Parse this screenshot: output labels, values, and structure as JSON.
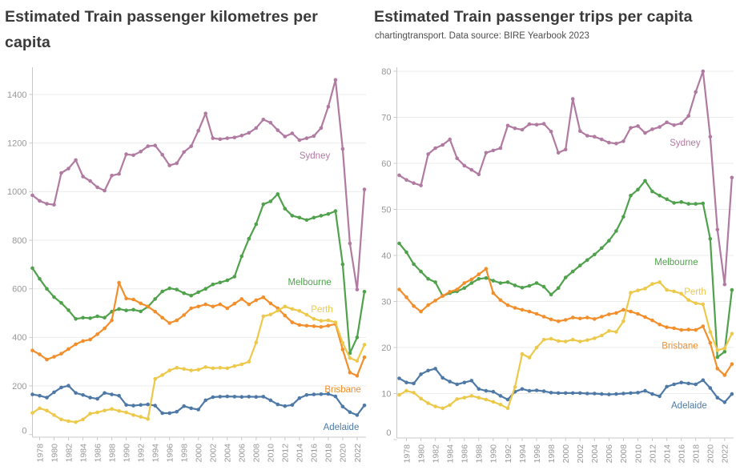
{
  "chart_data": [
    {
      "type": "line",
      "title": "Estimated Train passenger kilometres per capita",
      "subtitle": "",
      "x": [
        1977,
        1978,
        1979,
        1980,
        1981,
        1982,
        1983,
        1984,
        1985,
        1986,
        1987,
        1988,
        1989,
        1990,
        1991,
        1992,
        1993,
        1994,
        1995,
        1996,
        1997,
        1998,
        1999,
        2000,
        2001,
        2002,
        2003,
        2004,
        2005,
        2006,
        2007,
        2008,
        2009,
        2010,
        2011,
        2012,
        2013,
        2014,
        2015,
        2016,
        2017,
        2018,
        2019,
        2020,
        2021,
        2022,
        2023
      ],
      "xlabel": "",
      "ylabel": "",
      "ylim": [
        0,
        1500
      ],
      "grid": "horizontal",
      "legend_position": "inline-labels",
      "y_ticks": [
        0,
        200,
        400,
        600,
        800,
        1000,
        1200,
        1400
      ],
      "x_tick_years": [
        1978,
        1980,
        1982,
        1984,
        1986,
        1988,
        1990,
        1992,
        1994,
        1996,
        1998,
        2000,
        2002,
        2004,
        2006,
        2008,
        2010,
        2012,
        2014,
        2016,
        2018,
        2020,
        2022
      ],
      "series": [
        {
          "name": "Sydney",
          "color": "#b07aa1",
          "values": [
            985,
            962,
            950,
            946,
            1077,
            1095,
            1130,
            1062,
            1044,
            1018,
            1004,
            1066,
            1073,
            1154,
            1150,
            1165,
            1187,
            1190,
            1152,
            1108,
            1117,
            1163,
            1187,
            1251,
            1322,
            1220,
            1216,
            1220,
            1223,
            1231,
            1242,
            1262,
            1297,
            1284,
            1253,
            1227,
            1240,
            1212,
            1220,
            1229,
            1262,
            1350,
            1460,
            1176,
            787,
            597,
            1009
          ],
          "label": {
            "year": 2014.0,
            "value": 1136
          }
        },
        {
          "name": "Melbourne",
          "color": "#4fa14b",
          "values": [
            685,
            641,
            600,
            566,
            542,
            512,
            476,
            481,
            479,
            487,
            481,
            506,
            517,
            511,
            514,
            507,
            526,
            558,
            589,
            602,
            597,
            582,
            572,
            586,
            600,
            618,
            626,
            635,
            650,
            734,
            806,
            866,
            948,
            960,
            990,
            930,
            901,
            893,
            883,
            893,
            901,
            908,
            920,
            701,
            335,
            400,
            588
          ],
          "label": {
            "year": 2012.4,
            "value": 615
          }
        },
        {
          "name": "Adelaide",
          "color": "#4e79a7",
          "values": [
            165,
            160,
            152,
            174,
            194,
            201,
            171,
            163,
            152,
            147,
            171,
            165,
            160,
            122,
            119,
            122,
            124,
            119,
            88,
            88,
            94,
            117,
            108,
            103,
            141,
            154,
            156,
            157,
            156,
            155,
            156,
            155,
            156,
            141,
            124,
            117,
            122,
            150,
            163,
            165,
            166,
            167,
            157,
            115,
            92,
            80,
            120
          ],
          "label": {
            "year": 2017.3,
            "value": 19
          }
        },
        {
          "name": "Brisbane",
          "color": "#f28e2b",
          "values": [
            346,
            330,
            309,
            320,
            333,
            352,
            372,
            385,
            391,
            413,
            437,
            470,
            625,
            560,
            556,
            540,
            527,
            506,
            481,
            459,
            470,
            492,
            520,
            527,
            536,
            527,
            536,
            520,
            539,
            558,
            536,
            553,
            565,
            540,
            520,
            490,
            462,
            451,
            448,
            446,
            443,
            448,
            455,
            350,
            255,
            242,
            318
          ],
          "label": {
            "year": 2017.5,
            "value": 174
          }
        },
        {
          "name": "Perth",
          "color": "#edc94b",
          "values": [
            89,
            108,
            99,
            80,
            62,
            55,
            51,
            62,
            86,
            91,
            99,
            105,
            97,
            91,
            80,
            73,
            64,
            229,
            245,
            264,
            275,
            270,
            264,
            267,
            278,
            273,
            275,
            273,
            282,
            289,
            300,
            379,
            487,
            494,
            510,
            527,
            517,
            509,
            493,
            476,
            468,
            470,
            462,
            377,
            315,
            303,
            370
          ],
          "label": {
            "year": 2015.6,
            "value": 503
          }
        }
      ]
    },
    {
      "type": "line",
      "title": "Estimated Train passenger trips per capita",
      "subtitle": "chartingtransport. Data source: BIRE Yearbook 2023",
      "x": [
        1977,
        1978,
        1979,
        1980,
        1981,
        1982,
        1983,
        1984,
        1985,
        1986,
        1987,
        1988,
        1989,
        1990,
        1991,
        1992,
        1993,
        1994,
        1995,
        1996,
        1997,
        1998,
        1999,
        2000,
        2001,
        2002,
        2003,
        2004,
        2005,
        2006,
        2007,
        2008,
        2009,
        2010,
        2011,
        2012,
        2013,
        2014,
        2015,
        2016,
        2017,
        2018,
        2019,
        2020,
        2021,
        2022,
        2023
      ],
      "xlabel": "",
      "ylabel": "",
      "ylim": [
        0,
        81
      ],
      "grid": "horizontal",
      "legend_position": "inline-labels",
      "y_ticks": [
        0,
        10,
        20,
        30,
        40,
        50,
        60,
        70,
        80
      ],
      "x_tick_years": [
        1978,
        1980,
        1982,
        1984,
        1986,
        1988,
        1990,
        1992,
        1994,
        1996,
        1998,
        2000,
        2002,
        2004,
        2006,
        2008,
        2010,
        2012,
        2014,
        2016,
        2018,
        2020,
        2022
      ],
      "series": [
        {
          "name": "Sydney",
          "color": "#b07aa1",
          "values": [
            57.4,
            56.4,
            55.7,
            55.2,
            62.0,
            63.3,
            64.0,
            65.2,
            61.1,
            59.5,
            58.6,
            57.6,
            62.3,
            62.8,
            63.3,
            68.2,
            67.6,
            67.3,
            68.5,
            68.4,
            68.6,
            66.9,
            62.3,
            63.0,
            74.0,
            67.0,
            66.0,
            65.8,
            65.2,
            64.5,
            64.3,
            64.8,
            67.7,
            68.1,
            66.6,
            67.4,
            67.9,
            68.9,
            68.3,
            68.7,
            70.3,
            75.5,
            80.0,
            65.8,
            45.6,
            33.7,
            56.9
          ],
          "label": {
            "year": 2014.4,
            "value": 63.8
          }
        },
        {
          "name": "Melbourne",
          "color": "#4fa14b",
          "values": [
            42.6,
            40.7,
            38.1,
            36.5,
            34.9,
            34.2,
            31.2,
            31.8,
            32.2,
            32.9,
            34.0,
            34.9,
            35.1,
            34.5,
            34.0,
            34.2,
            33.5,
            33.0,
            33.4,
            34.0,
            33.2,
            31.5,
            32.9,
            35.2,
            36.5,
            37.8,
            39.0,
            40.2,
            41.6,
            43.2,
            45.3,
            48.4,
            53.0,
            54.3,
            56.2,
            53.9,
            53.0,
            52.2,
            51.4,
            51.6,
            51.2,
            51.2,
            51.3,
            43.6,
            17.9,
            19.1,
            32.5
          ],
          "label": {
            "year": 2012.3,
            "value": 37.9
          }
        },
        {
          "name": "Adelaide",
          "color": "#4e79a7",
          "values": [
            13.3,
            12.4,
            12.2,
            14.2,
            15.0,
            15.4,
            13.4,
            12.6,
            12.0,
            12.4,
            12.8,
            11.0,
            10.6,
            10.4,
            9.5,
            8.7,
            10.4,
            11.0,
            10.6,
            10.7,
            10.5,
            10.2,
            10.1,
            10.1,
            10.1,
            10.1,
            10.0,
            10.0,
            9.9,
            9.8,
            9.9,
            10.0,
            10.1,
            10.2,
            10.6,
            9.9,
            9.4,
            11.5,
            12.0,
            12.4,
            12.2,
            12.0,
            12.9,
            11.2,
            9.1,
            8.1,
            9.9
          ],
          "label": {
            "year": 2014.6,
            "value": 6.8
          }
        },
        {
          "name": "Brisbane",
          "color": "#f28e2b",
          "values": [
            32.6,
            30.9,
            29.0,
            27.8,
            29.2,
            30.2,
            31.2,
            32.1,
            32.6,
            34.0,
            34.8,
            35.9,
            37.1,
            31.8,
            30.3,
            29.2,
            28.6,
            28.2,
            27.8,
            27.3,
            26.7,
            26.1,
            25.7,
            26.0,
            26.5,
            26.3,
            26.5,
            26.2,
            26.7,
            27.2,
            27.5,
            28.2,
            27.8,
            27.3,
            26.6,
            25.9,
            25.0,
            24.4,
            24.2,
            23.8,
            23.9,
            23.8,
            24.6,
            21.0,
            15.4,
            14.0,
            16.4
          ],
          "label": {
            "year": 2013.3,
            "value": 19.7
          }
        },
        {
          "name": "Perth",
          "color": "#edc94b",
          "values": [
            9.7,
            10.6,
            10.2,
            8.9,
            7.9,
            7.2,
            6.8,
            7.5,
            8.8,
            9.1,
            9.5,
            9.1,
            8.7,
            8.2,
            7.6,
            6.8,
            11.4,
            18.6,
            17.8,
            20.0,
            21.7,
            21.9,
            21.4,
            21.3,
            21.7,
            21.3,
            21.6,
            22.0,
            22.6,
            23.6,
            23.4,
            25.7,
            31.9,
            32.4,
            32.8,
            33.8,
            34.2,
            32.5,
            32.2,
            31.7,
            30.3,
            29.6,
            29.4,
            23.4,
            19.4,
            19.8,
            23.0
          ],
          "label": {
            "year": 2016.4,
            "value": 31.5
          }
        }
      ]
    }
  ],
  "style": {
    "grid_color": "#ebebeb",
    "axis_color": "#c9c9c9",
    "tick_label_color": "#979797",
    "title_color": "#3a3a3a"
  }
}
